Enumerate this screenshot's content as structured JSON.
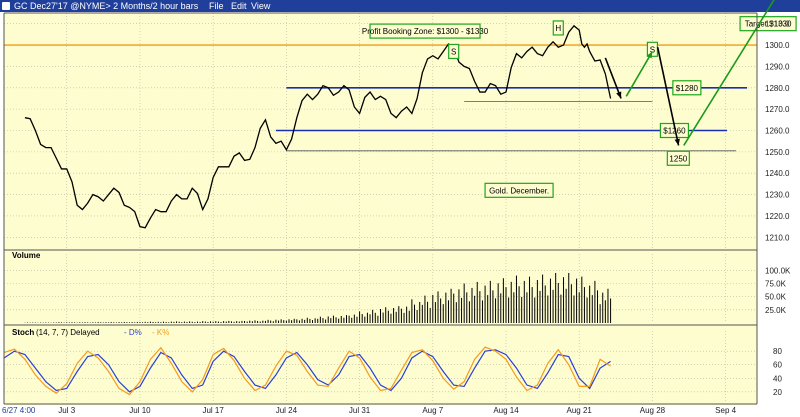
{
  "window": {
    "title": "GC Dec27'17 @NYME>  2 Months/2 hour bars",
    "menu": [
      "File",
      "Edit",
      "View"
    ]
  },
  "colors": {
    "background": "#fdfdd0",
    "price_line": "#000000",
    "resistance": "#f39c12",
    "support": "#1a2eb3",
    "arrow_up": "#1a9a1a",
    "arrow_down": "#000000",
    "label_border": "#1fa51f",
    "d_line": "#2b3fd4",
    "k_line": "#f59b1c"
  },
  "chart_data": [
    {
      "type": "line",
      "title": "Gold. December.",
      "y_ticks": [
        1210.0,
        1220.0,
        1230.0,
        1240.0,
        1250.0,
        1260.0,
        1270.0,
        1280.0,
        1290.0,
        1300.0,
        1310.0
      ],
      "ylim": [
        1205,
        1315
      ],
      "x_ticks": [
        "6/27 4:00",
        "Jul 3",
        "Jul 10",
        "Jul 17",
        "Jul 24",
        "Jul 31",
        "Aug 7",
        "Aug 14",
        "Aug 21",
        "Aug 28",
        "Sep 4"
      ],
      "x_tick_day": [
        -2,
        4,
        11,
        18,
        25,
        32,
        39,
        46,
        53,
        60,
        67
      ],
      "xlim_day": [
        -2,
        70
      ],
      "series": [
        {
          "name": "GC Dec27'17",
          "day": [
            0,
            1,
            2,
            3,
            4,
            5,
            6,
            7,
            8,
            9,
            10,
            11,
            12,
            13,
            14,
            15,
            16,
            17,
            18,
            19,
            20,
            21,
            22,
            23,
            24,
            25,
            26,
            27,
            28,
            29,
            30,
            31,
            32,
            33,
            34,
            35,
            36,
            37,
            38,
            39,
            40,
            41,
            42,
            43,
            44,
            45,
            46,
            47,
            48,
            49,
            50,
            51,
            52,
            53,
            53.5,
            54,
            55,
            56
          ],
          "close": [
            1266,
            1260,
            1252,
            1247,
            1242,
            1225,
            1226,
            1229,
            1230,
            1231,
            1224,
            1215,
            1219,
            1222,
            1227,
            1228,
            1233,
            1223,
            1238,
            1243,
            1248,
            1246,
            1252,
            1265,
            1254,
            1251,
            1266,
            1277,
            1277,
            1280,
            1278,
            1279,
            1268,
            1278,
            1276,
            1268,
            1269,
            1268,
            1287,
            1295,
            1297,
            1299,
            1290,
            1283,
            1278,
            1281,
            1278,
            1296,
            1297,
            1296,
            1299,
            1299,
            1306,
            1307,
            1299,
            1297,
            1293,
            1275
          ]
        }
      ],
      "levels": [
        {
          "value": 1300,
          "label": "Profit Booking Zone: $1300 - $1330",
          "kind": "resistance"
        },
        {
          "value": 1280,
          "label": "$1280",
          "kind": "support"
        },
        {
          "value": 1260,
          "label": "$1260",
          "kind": "support"
        }
      ],
      "thin_levels": [
        {
          "value": 1273.5,
          "from_day": 42,
          "to_day": 60
        },
        {
          "value": 1250.5,
          "from_day": 25,
          "to_day": 68
        }
      ],
      "pattern_labels": [
        {
          "text": "S",
          "day": 41,
          "value": 1297
        },
        {
          "text": "H",
          "day": 51,
          "value": 1308
        },
        {
          "text": "S",
          "day": 60,
          "value": 1298
        }
      ],
      "projections": [
        {
          "kind": "down",
          "from": [
            55.5,
            1294
          ],
          "to": [
            57,
            1275
          ]
        },
        {
          "kind": "up",
          "from": [
            57.5,
            1276
          ],
          "to": [
            60,
            1297
          ]
        },
        {
          "kind": "down",
          "from": [
            60.5,
            1299
          ],
          "to": [
            62.5,
            1253
          ]
        },
        {
          "kind": "up",
          "from": [
            63,
            1253
          ],
          "to": [
            73,
            1332
          ]
        }
      ],
      "target_label": "Target $1330",
      "projection_label": "1250"
    },
    {
      "type": "bar",
      "title": "Volume",
      "y_ticks": [
        "25.0K",
        "50.0K",
        "75.0K",
        "100.0K"
      ],
      "y_tick_values": [
        25000,
        50000,
        75000,
        100000
      ],
      "ylim": [
        0,
        112000
      ],
      "day": [
        0,
        1,
        2,
        3,
        4,
        5,
        6,
        7,
        8,
        9,
        10,
        11,
        12,
        13,
        14,
        15,
        16,
        17,
        18,
        19,
        20,
        21,
        22,
        23,
        24,
        25,
        26,
        27,
        28,
        29,
        30,
        31,
        32,
        33,
        34,
        35,
        36,
        37,
        38,
        39,
        40,
        41,
        42,
        43,
        44,
        45,
        46,
        47,
        48,
        49,
        50,
        51,
        52,
        53,
        54,
        55,
        56
      ],
      "values": [
        1000,
        1000,
        1000,
        1500,
        1500,
        1500,
        1500,
        1800,
        1800,
        2000,
        2000,
        2500,
        2500,
        2500,
        3000,
        3000,
        3000,
        3500,
        3500,
        4000,
        4000,
        5000,
        5000,
        6000,
        7000,
        8000,
        9000,
        10000,
        12000,
        14000,
        15000,
        18000,
        22000,
        25000,
        30000,
        32000,
        35000,
        45000,
        52000,
        60000,
        65000,
        72000,
        75000,
        78000,
        80000,
        85000,
        88000,
        90000,
        88000,
        92000,
        95000,
        98000,
        95000,
        88000,
        80000,
        65000,
        60000
      ]
    },
    {
      "type": "line",
      "title": "Stoch",
      "subtitle": "(14, 7, 7) Delayed",
      "y_ticks": [
        20,
        40,
        60,
        80
      ],
      "ylim": [
        5,
        95
      ],
      "series": [
        {
          "name": "D%",
          "day": [
            -2,
            -1,
            0,
            1,
            2,
            3,
            4,
            5,
            6,
            7,
            8,
            9,
            10,
            11,
            12,
            13,
            14,
            15,
            16,
            17,
            18,
            19,
            20,
            21,
            22,
            23,
            24,
            25,
            26,
            27,
            28,
            29,
            30,
            31,
            32,
            33,
            34,
            35,
            36,
            37,
            38,
            39,
            40,
            41,
            42,
            43,
            44,
            45,
            46,
            47,
            48,
            49,
            50,
            51,
            52,
            53,
            54,
            55,
            56
          ],
          "values": [
            70,
            80,
            75,
            55,
            35,
            22,
            25,
            50,
            72,
            75,
            60,
            35,
            20,
            28,
            55,
            78,
            70,
            45,
            25,
            30,
            65,
            80,
            72,
            50,
            30,
            25,
            45,
            70,
            78,
            60,
            38,
            30,
            45,
            72,
            75,
            55,
            30,
            22,
            40,
            70,
            80,
            72,
            50,
            30,
            28,
            55,
            80,
            82,
            75,
            55,
            30,
            25,
            48,
            75,
            72,
            40,
            25,
            55,
            65
          ]
        },
        {
          "name": "K%",
          "day": [
            -2,
            -1,
            0,
            1,
            2,
            3,
            4,
            5,
            6,
            7,
            8,
            9,
            10,
            11,
            12,
            13,
            14,
            15,
            16,
            17,
            18,
            19,
            20,
            21,
            22,
            23,
            24,
            25,
            26,
            27,
            28,
            29,
            30,
            31,
            32,
            33,
            34,
            35,
            36,
            37,
            38,
            39,
            40,
            41,
            42,
            43,
            44,
            45,
            46,
            47,
            48,
            49,
            50,
            51,
            52,
            53,
            54,
            55,
            56
          ],
          "values": [
            78,
            83,
            68,
            45,
            28,
            18,
            32,
            62,
            80,
            70,
            50,
            25,
            16,
            35,
            68,
            85,
            62,
            35,
            20,
            38,
            75,
            84,
            66,
            40,
            22,
            30,
            58,
            80,
            74,
            50,
            30,
            28,
            55,
            80,
            70,
            42,
            22,
            25,
            52,
            78,
            82,
            66,
            40,
            24,
            35,
            68,
            86,
            80,
            68,
            42,
            22,
            30,
            62,
            82,
            60,
            28,
            28,
            68,
            58
          ]
        }
      ]
    }
  ]
}
